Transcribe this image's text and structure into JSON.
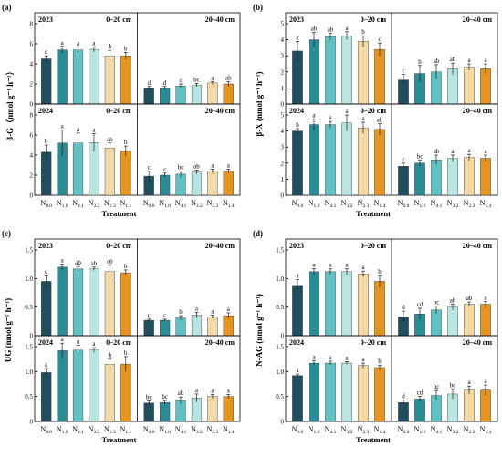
{
  "figure": {
    "treatments": [
      "N0.0",
      "N1.0",
      "N4.1",
      "N3.2",
      "N2.3",
      "N1.4"
    ],
    "treatment_labels": [
      {
        "main": "N",
        "sub": "0.0"
      },
      {
        "main": "N",
        "sub": "1.0"
      },
      {
        "main": "N",
        "sub": "4.1"
      },
      {
        "main": "N",
        "sub": "3.2"
      },
      {
        "main": "N",
        "sub": "2.3"
      },
      {
        "main": "N",
        "sub": "1.4"
      }
    ],
    "treatment_colors": [
      "#1f4e5f",
      "#2b8c96",
      "#5fc1c4",
      "#b7e6e2",
      "#f2d9a6",
      "#e59420"
    ],
    "x_axis_title": "Treatment",
    "depth_labels": [
      "0–20 cm",
      "20–40 cm"
    ]
  },
  "chart_data": [
    {
      "type": "bar",
      "panel": "(a)",
      "ylabel": "β-G（nmol g⁻¹ h⁻¹）",
      "ylim": [
        0,
        8
      ],
      "yticks": [
        0,
        2,
        4,
        6,
        8
      ],
      "subplots": [
        {
          "year": "2023",
          "depths": [
            {
              "depth": "0–20 cm",
              "values": [
                4.5,
                5.4,
                5.4,
                5.45,
                4.8,
                4.8
              ],
              "errors": [
                0.3,
                0.35,
                0.3,
                0.25,
                0.55,
                0.35
              ],
              "letters": [
                "c",
                "a",
                "a",
                "a",
                "b",
                "b"
              ]
            },
            {
              "depth": "20–40 cm",
              "values": [
                1.6,
                1.6,
                1.8,
                1.9,
                2.1,
                2.0
              ],
              "errors": [
                0.15,
                0.15,
                0.2,
                0.15,
                0.15,
                0.25
              ],
              "letters": [
                "d",
                "d",
                "c",
                "bc",
                "a",
                "ab"
              ]
            }
          ]
        },
        {
          "year": "2024",
          "depths": [
            {
              "depth": "0–20 cm",
              "values": [
                4.3,
                5.2,
                5.2,
                5.25,
                4.7,
                4.4
              ],
              "errors": [
                0.7,
                1.3,
                1.0,
                0.9,
                0.5,
                0.5
              ],
              "letters": [
                "b",
                "a",
                "a",
                "a",
                "ab",
                "b"
              ]
            },
            {
              "depth": "20–40 cm",
              "values": [
                1.9,
                2.0,
                2.1,
                2.3,
                2.4,
                2.4
              ],
              "errors": [
                0.5,
                0.2,
                0.3,
                0.2,
                0.2,
                0.2
              ],
              "letters": [
                "c",
                "c",
                "bc",
                "ab",
                "a",
                "a"
              ]
            }
          ]
        }
      ]
    },
    {
      "type": "bar",
      "panel": "(b)",
      "ylabel": "β-X (nmol g⁻¹ h⁻¹)",
      "ylim": [
        0,
        5
      ],
      "yticks": [
        0,
        1,
        2,
        3,
        4,
        5
      ],
      "subplots": [
        {
          "year": "2023",
          "depths": [
            {
              "depth": "0–20 cm",
              "values": [
                3.3,
                4.0,
                4.2,
                4.25,
                3.9,
                3.4
              ],
              "errors": [
                0.6,
                0.45,
                0.2,
                0.25,
                0.35,
                0.4
              ],
              "letters": [
                "c",
                "ab",
                "ab",
                "a",
                "b",
                "c"
              ]
            },
            {
              "depth": "20–40 cm",
              "values": [
                1.5,
                1.9,
                2.0,
                2.2,
                2.3,
                2.2
              ],
              "errors": [
                0.35,
                0.5,
                0.45,
                0.35,
                0.2,
                0.3
              ],
              "letters": [
                "c",
                "b",
                "ab",
                "ab",
                "a",
                "a"
              ]
            }
          ]
        },
        {
          "year": "2024",
          "depths": [
            {
              "depth": "0–20 cm",
              "values": [
                4.0,
                4.4,
                4.4,
                4.5,
                4.2,
                4.1
              ],
              "errors": [
                0.15,
                0.35,
                0.2,
                0.5,
                0.35,
                0.35
              ],
              "letters": [
                "b",
                "a",
                "a",
                "a",
                "a",
                "ab"
              ]
            },
            {
              "depth": "20–40 cm",
              "values": [
                1.8,
                2.0,
                2.2,
                2.3,
                2.35,
                2.3
              ],
              "errors": [
                0.2,
                0.2,
                0.3,
                0.2,
                0.2,
                0.2
              ],
              "letters": [
                "c",
                "bc",
                "ab",
                "a",
                "a",
                "a"
              ]
            }
          ]
        }
      ]
    },
    {
      "type": "bar",
      "panel": "(c)",
      "ylabel": "UG (nmol g⁻¹ h⁻¹)",
      "ylim": [
        0,
        1.5
      ],
      "yticks": [
        0,
        0.5,
        1.0,
        1.5
      ],
      "subplots": [
        {
          "year": "2023",
          "depths": [
            {
              "depth": "0–20 cm",
              "values": [
                0.95,
                1.2,
                1.17,
                1.17,
                1.12,
                1.1
              ],
              "errors": [
                0.1,
                0.05,
                0.04,
                0.03,
                0.12,
                0.05
              ],
              "letters": [
                "c",
                "a",
                "ab",
                "ab",
                "ab",
                "b"
              ]
            },
            {
              "depth": "20–40 cm",
              "values": [
                0.27,
                0.27,
                0.31,
                0.36,
                0.33,
                0.35
              ],
              "errors": [
                0.02,
                0.02,
                0.04,
                0.05,
                0.03,
                0.05
              ],
              "letters": [
                "c",
                "c",
                "b",
                "a",
                "a",
                "a"
              ]
            }
          ]
        },
        {
          "year": "2024",
          "depths": [
            {
              "depth": "0–20 cm",
              "values": [
                0.98,
                1.42,
                1.43,
                1.43,
                1.15,
                1.15
              ],
              "errors": [
                0.08,
                0.15,
                0.1,
                0.05,
                0.1,
                0.15
              ],
              "letters": [
                "c",
                "a",
                "a",
                "a",
                "b",
                "b"
              ]
            },
            {
              "depth": "20–40 cm",
              "values": [
                0.37,
                0.38,
                0.42,
                0.47,
                0.5,
                0.5
              ],
              "errors": [
                0.04,
                0.04,
                0.07,
                0.08,
                0.04,
                0.04
              ],
              "letters": [
                "bc",
                "bc",
                "ab",
                "a",
                "a",
                "a"
              ]
            }
          ]
        }
      ]
    },
    {
      "type": "bar",
      "panel": "(d)",
      "ylabel": "N-AG (nmol g⁻¹ h⁻¹)",
      "ylim": [
        0,
        1.5
      ],
      "yticks": [
        0,
        0.5,
        1.0,
        1.5
      ],
      "subplots": [
        {
          "year": "2023",
          "depths": [
            {
              "depth": "0–20 cm",
              "values": [
                0.88,
                1.12,
                1.12,
                1.12,
                1.08,
                0.95
              ],
              "errors": [
                0.1,
                0.05,
                0.05,
                0.05,
                0.05,
                0.1
              ],
              "letters": [
                "c",
                "a",
                "a",
                "a",
                "a",
                "b"
              ]
            },
            {
              "depth": "20–40 cm",
              "values": [
                0.33,
                0.38,
                0.45,
                0.5,
                0.55,
                0.55
              ],
              "errors": [
                0.1,
                0.1,
                0.07,
                0.05,
                0.04,
                0.05
              ],
              "letters": [
                "d",
                "cd",
                "bc",
                "ab",
                "ab",
                "a"
              ]
            }
          ]
        },
        {
          "year": "2024",
          "depths": [
            {
              "depth": "0–20 cm",
              "values": [
                0.92,
                1.17,
                1.17,
                1.17,
                1.12,
                1.08
              ],
              "errors": [
                0.03,
                0.05,
                0.04,
                0.03,
                0.05,
                0.05
              ],
              "letters": [
                "c",
                "a",
                "a",
                "a",
                "a",
                "b"
              ]
            },
            {
              "depth": "20–40 cm",
              "values": [
                0.38,
                0.45,
                0.52,
                0.55,
                0.63,
                0.63
              ],
              "errors": [
                0.05,
                0.05,
                0.1,
                0.1,
                0.08,
                0.1
              ],
              "letters": [
                "d",
                "cd",
                "bc",
                "bc",
                "a",
                "a"
              ]
            }
          ]
        }
      ]
    }
  ]
}
